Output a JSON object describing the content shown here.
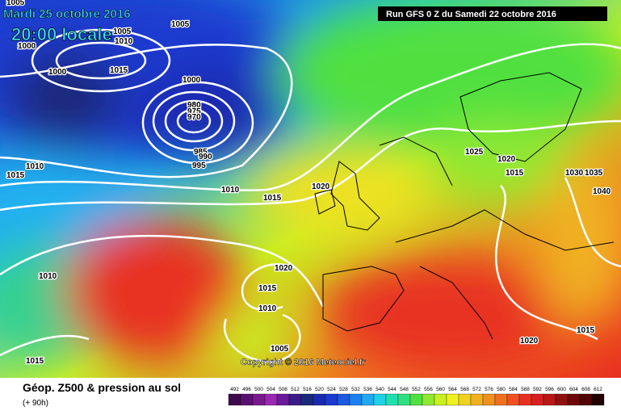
{
  "header": {
    "date": "Mardi 25 octobre 2016",
    "time": "20:00 locale",
    "run": "Run GFS 0 Z du Samedi 22 octobre 2016"
  },
  "copyright": "Copyright © 2016 Meteociel.fr",
  "legend": {
    "title": "Géop. Z500 & pression au sol",
    "lead": "(+ 90h)",
    "values": [
      492,
      496,
      500,
      504,
      508,
      512,
      516,
      520,
      524,
      528,
      532,
      536,
      540,
      544,
      548,
      552,
      556,
      560,
      564,
      568,
      572,
      576,
      580,
      584,
      588,
      592,
      596,
      600,
      604,
      608,
      612
    ],
    "colors": [
      "#3c0a4a",
      "#5a1070",
      "#7a1890",
      "#9a28b0",
      "#6a1a9a",
      "#3a1a8a",
      "#1a2a7a",
      "#1a2ab0",
      "#1a3ad0",
      "#1a5ae0",
      "#1a80f0",
      "#20a8f0",
      "#20d0e8",
      "#20e0b0",
      "#30e080",
      "#50e040",
      "#90e830",
      "#c8f020",
      "#f0f020",
      "#f0d020",
      "#f0b020",
      "#f09020",
      "#f07020",
      "#f05020",
      "#e83020",
      "#d82020",
      "#b81818",
      "#901010",
      "#700808",
      "#500404",
      "#200000"
    ]
  },
  "isobars": [
    "1005",
    "1005",
    "1010",
    "1005",
    "1000",
    "1000",
    "1015",
    "1000",
    "980",
    "975",
    "970",
    "985",
    "990",
    "995",
    "1015",
    "1010",
    "1010",
    "1015",
    "1020",
    "1025",
    "1020",
    "1015",
    "1030",
    "1035",
    "1040",
    "1010",
    "1020",
    "1015",
    "1010",
    "1005",
    "1015",
    "1020",
    "1015"
  ]
}
